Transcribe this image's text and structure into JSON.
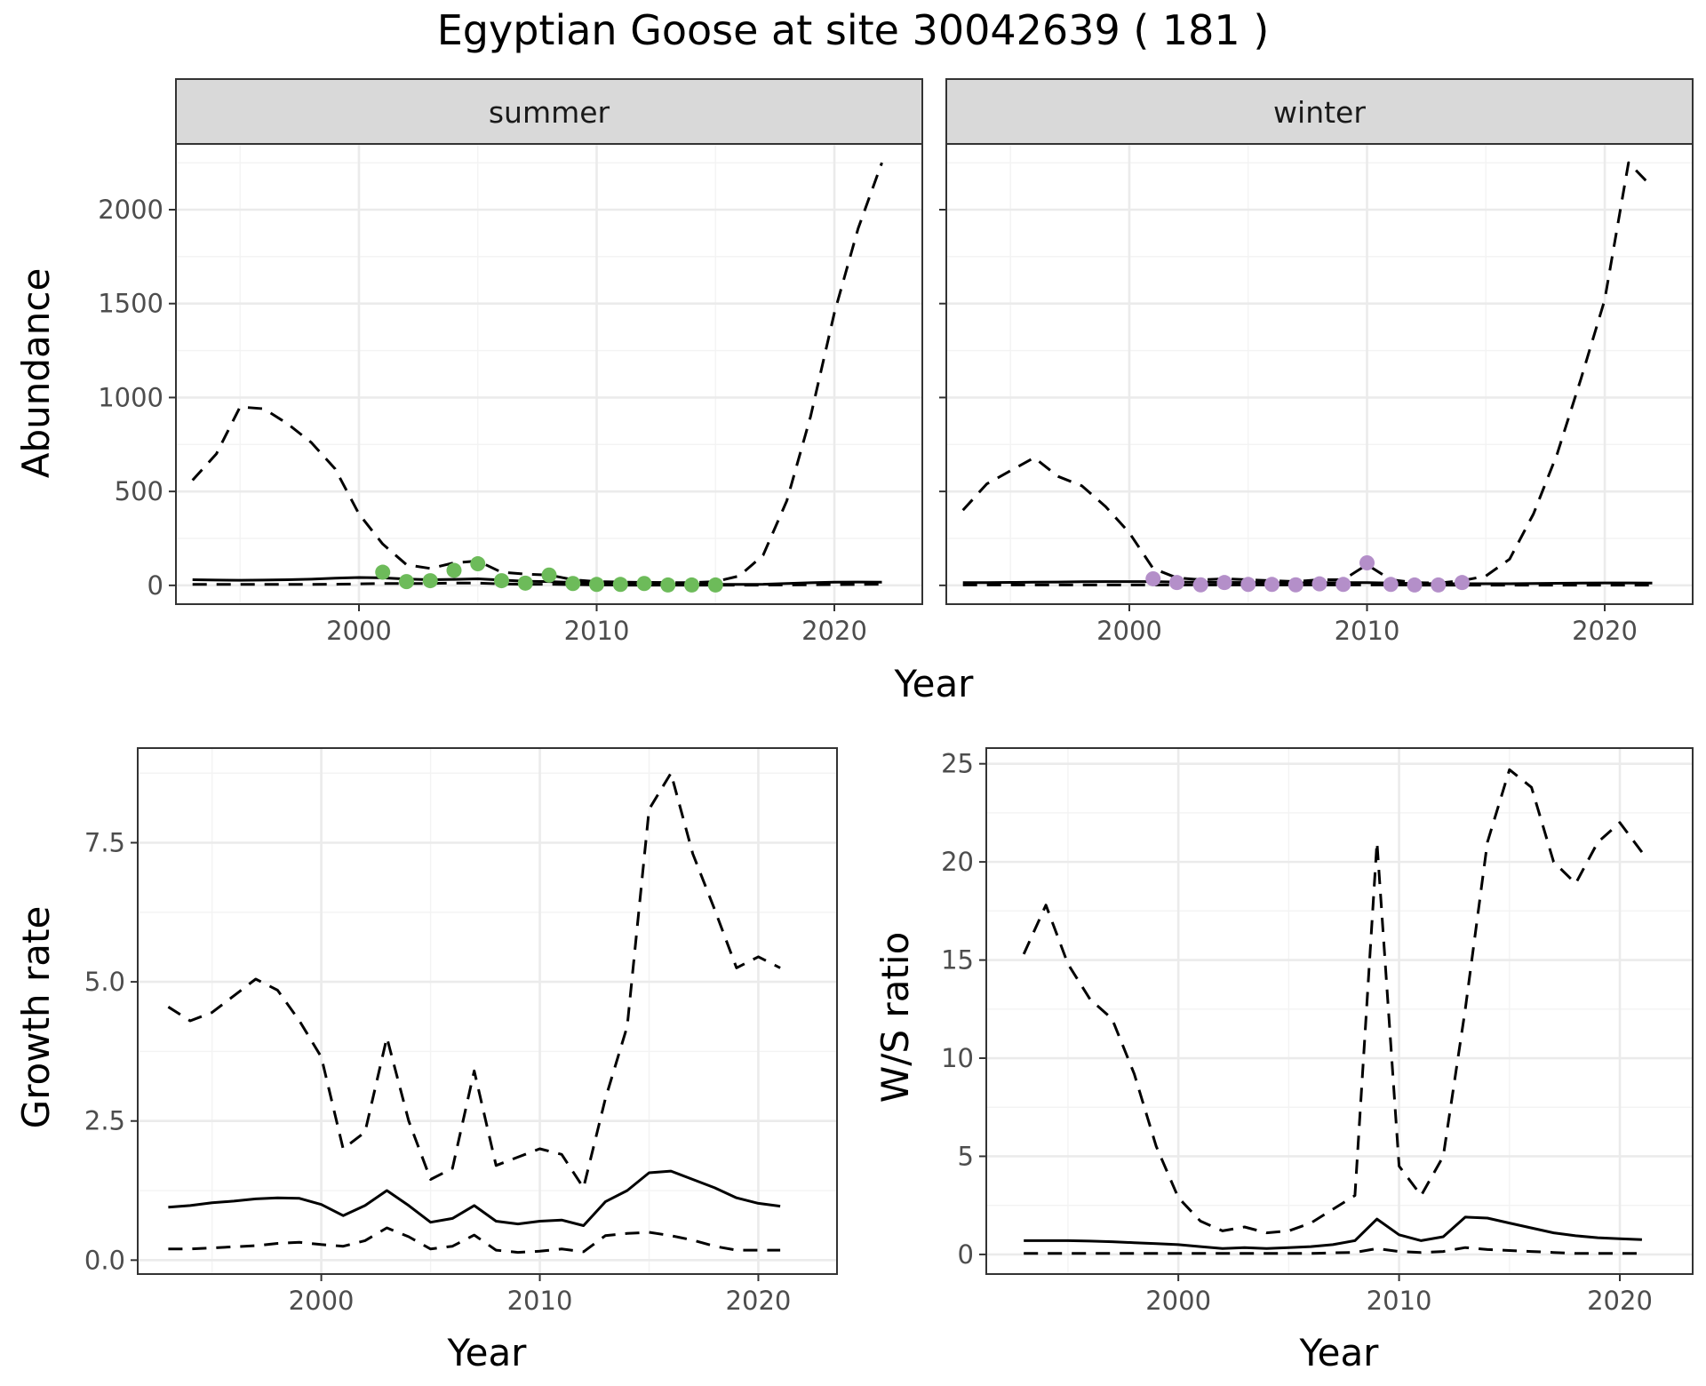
{
  "title": "Egyptian Goose at site 30042639 ( 181 )",
  "chart_data": [
    {
      "type": "line",
      "facet": "summer",
      "xlabel": "Year",
      "ylabel": "Abundance",
      "xlim": [
        1992.3,
        2023.7
      ],
      "ylim": [
        -100,
        2350
      ],
      "xticks": [
        2000,
        2010,
        2020
      ],
      "yticks": [
        0,
        500,
        1000,
        1500,
        2000
      ],
      "grid": true,
      "point_color": "#6dbb5a",
      "x": [
        1993,
        1994,
        1995,
        1996,
        1997,
        1998,
        1999,
        2000,
        2001,
        2002,
        2003,
        2004,
        2005,
        2006,
        2007,
        2008,
        2009,
        2010,
        2011,
        2012,
        2013,
        2014,
        2015,
        2016,
        2017,
        2018,
        2019,
        2020,
        2021,
        2022
      ],
      "series": [
        {
          "style": "solid",
          "values": [
            30,
            28,
            27,
            28,
            30,
            33,
            38,
            42,
            40,
            34,
            30,
            32,
            35,
            28,
            22,
            20,
            16,
            12,
            8,
            6,
            5,
            5,
            5,
            5,
            6,
            10,
            14,
            17,
            18,
            17
          ]
        },
        {
          "style": "dashed-upper",
          "values": [
            560,
            700,
            950,
            940,
            860,
            760,
            620,
            380,
            220,
            110,
            90,
            120,
            130,
            70,
            60,
            55,
            30,
            20,
            18,
            16,
            15,
            15,
            20,
            50,
            160,
            450,
            900,
            1450,
            1900,
            2250
          ]
        },
        {
          "style": "dashed-lower",
          "values": [
            5,
            5,
            5,
            5,
            5,
            5,
            6,
            8,
            10,
            10,
            10,
            12,
            12,
            8,
            6,
            6,
            4,
            2,
            1,
            1,
            1,
            1,
            1,
            1,
            1,
            2,
            3,
            4,
            5,
            6
          ]
        }
      ],
      "points": {
        "x": [
          2001,
          2002,
          2003,
          2004,
          2005,
          2006,
          2007,
          2008,
          2009,
          2010,
          2011,
          2012,
          2013,
          2014,
          2015
        ],
        "y": [
          70,
          20,
          25,
          80,
          115,
          25,
          12,
          55,
          10,
          5,
          5,
          10,
          2,
          2,
          2
        ]
      }
    },
    {
      "type": "line",
      "facet": "winter",
      "xlabel": "Year",
      "ylabel": "",
      "xlim": [
        1992.3,
        2023.7
      ],
      "ylim": [
        -100,
        2350
      ],
      "xticks": [
        2000,
        2010,
        2020
      ],
      "yticks": [
        0,
        500,
        1000,
        1500,
        2000
      ],
      "grid": true,
      "point_color": "#b48fc9",
      "x": [
        1993,
        1994,
        1995,
        1996,
        1997,
        1998,
        1999,
        2000,
        2001,
        2002,
        2003,
        2004,
        2005,
        2006,
        2007,
        2008,
        2009,
        2010,
        2011,
        2012,
        2013,
        2014,
        2015,
        2016,
        2017,
        2018,
        2019,
        2020,
        2021,
        2022
      ],
      "series": [
        {
          "style": "solid",
          "values": [
            15,
            15,
            16,
            17,
            18,
            19,
            20,
            20,
            20,
            18,
            17,
            16,
            15,
            14,
            13,
            14,
            15,
            15,
            12,
            10,
            9,
            9,
            9,
            9,
            10,
            11,
            12,
            13,
            13,
            12
          ]
        },
        {
          "style": "dashed-upper",
          "values": [
            400,
            540,
            610,
            680,
            580,
            530,
            420,
            280,
            90,
            40,
            30,
            35,
            30,
            25,
            20,
            30,
            30,
            110,
            30,
            15,
            12,
            25,
            50,
            140,
            380,
            700,
            1100,
            1520,
            2250,
            2120
          ]
        },
        {
          "style": "dashed-lower",
          "values": [
            2,
            2,
            2,
            2,
            2,
            2,
            2,
            2,
            2,
            2,
            2,
            2,
            2,
            2,
            2,
            2,
            2,
            2,
            2,
            1,
            1,
            1,
            1,
            1,
            1,
            1,
            1,
            1,
            1,
            1
          ]
        }
      ],
      "points": {
        "x": [
          2001,
          2002,
          2003,
          2004,
          2005,
          2006,
          2007,
          2008,
          2009,
          2010,
          2011,
          2012,
          2013,
          2014
        ],
        "y": [
          35,
          15,
          3,
          15,
          5,
          5,
          3,
          8,
          5,
          120,
          5,
          2,
          2,
          15
        ]
      }
    },
    {
      "type": "line",
      "xlabel": "Year",
      "ylabel": "Growth rate",
      "xlim": [
        1991.6,
        2023.6
      ],
      "ylim": [
        -0.25,
        9.2
      ],
      "xticks": [
        2000,
        2010,
        2020
      ],
      "yticks": [
        0.0,
        2.5,
        5.0,
        7.5
      ],
      "ytick_labels": [
        "0.0",
        "2.5",
        "5.0",
        "7.5"
      ],
      "grid": true,
      "x": [
        1993,
        1994,
        1995,
        1996,
        1997,
        1998,
        1999,
        2000,
        2001,
        2002,
        2003,
        2004,
        2005,
        2006,
        2007,
        2008,
        2009,
        2010,
        2011,
        2012,
        2013,
        2014,
        2015,
        2016,
        2017,
        2018,
        2019,
        2020,
        2021
      ],
      "series": [
        {
          "style": "solid",
          "values": [
            0.95,
            0.98,
            1.03,
            1.06,
            1.1,
            1.12,
            1.11,
            1.0,
            0.8,
            0.98,
            1.25,
            0.98,
            0.68,
            0.75,
            0.98,
            0.7,
            0.65,
            0.7,
            0.72,
            0.62,
            1.05,
            1.25,
            1.57,
            1.6,
            1.45,
            1.3,
            1.12,
            1.02,
            0.97
          ]
        },
        {
          "style": "dashed-upper",
          "values": [
            4.55,
            4.3,
            4.45,
            4.75,
            5.05,
            4.85,
            4.3,
            3.65,
            2.0,
            2.3,
            4.0,
            2.5,
            1.45,
            1.65,
            3.4,
            1.7,
            1.85,
            2.0,
            1.9,
            1.3,
            2.9,
            4.2,
            8.1,
            8.75,
            7.3,
            6.3,
            5.25,
            5.45,
            5.25
          ]
        },
        {
          "style": "dashed-lower",
          "values": [
            0.2,
            0.2,
            0.22,
            0.24,
            0.26,
            0.3,
            0.32,
            0.28,
            0.25,
            0.35,
            0.58,
            0.42,
            0.2,
            0.25,
            0.45,
            0.18,
            0.14,
            0.16,
            0.2,
            0.15,
            0.44,
            0.48,
            0.5,
            0.44,
            0.36,
            0.25,
            0.18,
            0.18,
            0.18
          ]
        }
      ]
    },
    {
      "type": "line",
      "xlabel": "Year",
      "ylabel": "W/S ratio",
      "xlim": [
        1991.3,
        2023.3
      ],
      "ylim": [
        -1.0,
        25.8
      ],
      "xticks": [
        2000,
        2010,
        2020
      ],
      "yticks": [
        0,
        5,
        10,
        15,
        20,
        25
      ],
      "grid": true,
      "x": [
        1993,
        1994,
        1995,
        1996,
        1997,
        1998,
        1999,
        2000,
        2001,
        2002,
        2003,
        2004,
        2005,
        2006,
        2007,
        2008,
        2009,
        2010,
        2011,
        2012,
        2013,
        2014,
        2015,
        2016,
        2017,
        2018,
        2019,
        2020,
        2021
      ],
      "series": [
        {
          "style": "solid",
          "values": [
            0.7,
            0.7,
            0.7,
            0.68,
            0.65,
            0.6,
            0.55,
            0.5,
            0.4,
            0.3,
            0.35,
            0.3,
            0.35,
            0.4,
            0.5,
            0.7,
            1.8,
            1.0,
            0.7,
            0.9,
            1.9,
            1.85,
            1.6,
            1.35,
            1.1,
            0.95,
            0.85,
            0.8,
            0.75
          ]
        },
        {
          "style": "dashed-upper",
          "values": [
            15.3,
            17.8,
            14.8,
            13.0,
            12.0,
            9.2,
            5.5,
            2.9,
            1.7,
            1.2,
            1.4,
            1.1,
            1.2,
            1.6,
            2.3,
            3.0,
            21.0,
            4.5,
            3.0,
            5.0,
            12.5,
            21.0,
            24.7,
            23.8,
            20.0,
            18.9,
            21.0,
            22.0,
            20.5
          ]
        },
        {
          "style": "dashed-lower",
          "values": [
            0.05,
            0.05,
            0.05,
            0.05,
            0.05,
            0.05,
            0.05,
            0.05,
            0.05,
            0.05,
            0.05,
            0.05,
            0.05,
            0.05,
            0.08,
            0.1,
            0.3,
            0.15,
            0.1,
            0.15,
            0.35,
            0.25,
            0.2,
            0.15,
            0.1,
            0.05,
            0.05,
            0.05,
            0.05
          ]
        }
      ]
    }
  ]
}
